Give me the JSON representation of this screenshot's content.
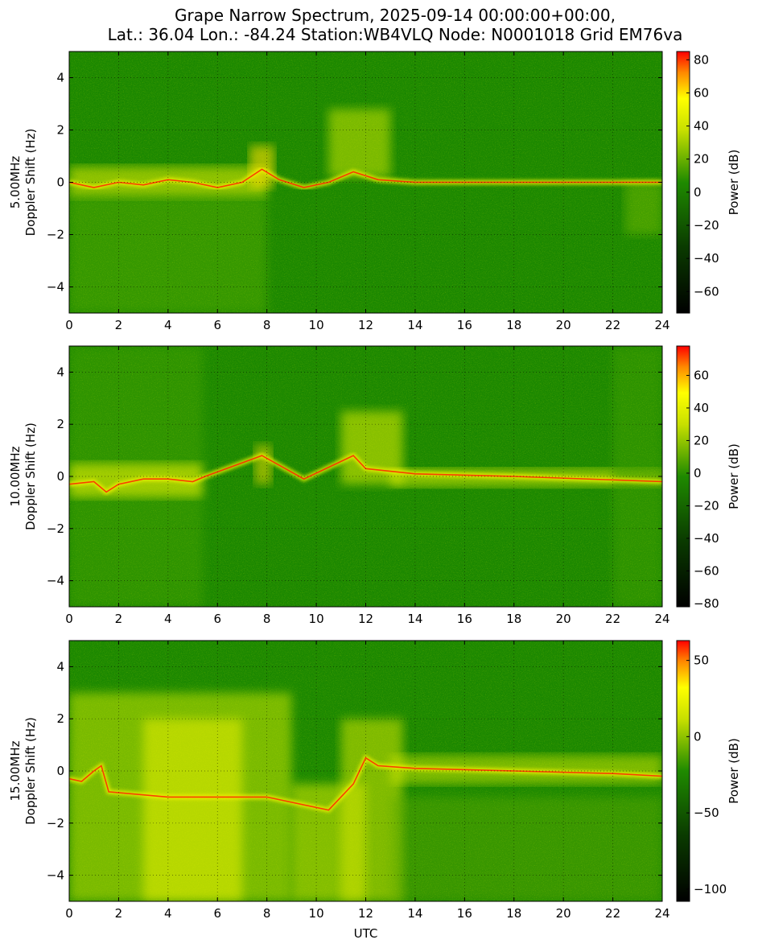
{
  "title_line1": "Grape Narrow Spectrum, 2025-09-14 00:00:00+00:00,",
  "title_line2": "Lat.: 36.04 Lon.: -84.24 Station:WB4VLQ Node: N0001018 Grid EM76va",
  "colors": {
    "background_green": "#1f8a00",
    "dark_green": "#0d4d00",
    "yellow": "#f2f200",
    "red": "#ff2200",
    "grid": "#000000"
  },
  "chart_data": [
    {
      "type": "heatmap",
      "panel": "5.00MHz",
      "ylabel_line1": "5.00MHz",
      "ylabel_line2": "Doppler Shift (Hz)",
      "xlabel": "",
      "xlim": [
        0,
        24
      ],
      "ylim": [
        -5,
        5
      ],
      "xticks": [
        0,
        2,
        4,
        6,
        8,
        10,
        12,
        14,
        16,
        18,
        20,
        22,
        24
      ],
      "yticks": [
        4,
        2,
        0,
        -2,
        -4
      ],
      "colorbar": {
        "label": "Power (dB)",
        "range": [
          -73,
          85
        ],
        "ticks": [
          80,
          60,
          40,
          20,
          0,
          -20,
          -40,
          -60
        ]
      },
      "trace": {
        "x": [
          0,
          1,
          2,
          3,
          4,
          5,
          6,
          7,
          7.8,
          8.5,
          9.5,
          10.5,
          11.5,
          12.5,
          14,
          24
        ],
        "y": [
          0,
          -0.2,
          0,
          -0.1,
          0.1,
          0,
          -0.2,
          0,
          0.5,
          0.1,
          -0.2,
          0,
          0.4,
          0.1,
          0,
          0
        ]
      }
    },
    {
      "type": "heatmap",
      "panel": "10.00MHz",
      "ylabel_line1": "10.00MHz",
      "ylabel_line2": "Doppler Shift (Hz)",
      "xlabel": "",
      "xlim": [
        0,
        24
      ],
      "ylim": [
        -5,
        5
      ],
      "xticks": [
        0,
        2,
        4,
        6,
        8,
        10,
        12,
        14,
        16,
        18,
        20,
        22,
        24
      ],
      "yticks": [
        4,
        2,
        0,
        -2,
        -4
      ],
      "colorbar": {
        "label": "Power (dB)",
        "range": [
          -82,
          78
        ],
        "ticks": [
          60,
          40,
          20,
          0,
          -20,
          -40,
          -60,
          -80
        ]
      },
      "trace": {
        "x": [
          0,
          1,
          1.5,
          2,
          3,
          4,
          5,
          5.5,
          7.8,
          9.5,
          11.5,
          12,
          14,
          18,
          24
        ],
        "y": [
          -0.3,
          -0.2,
          -0.6,
          -0.3,
          -0.1,
          -0.1,
          -0.2,
          0,
          0.8,
          -0.1,
          0.8,
          0.3,
          0.1,
          0,
          -0.2
        ]
      }
    },
    {
      "type": "heatmap",
      "panel": "15.00MHz",
      "ylabel_line1": "15.00MHz",
      "ylabel_line2": "Doppler Shift (Hz)",
      "xlabel": "UTC",
      "xlim": [
        0,
        24
      ],
      "ylim": [
        -5,
        5
      ],
      "xticks": [
        0,
        2,
        4,
        6,
        8,
        10,
        12,
        14,
        16,
        18,
        20,
        22,
        24
      ],
      "yticks": [
        4,
        2,
        0,
        -2,
        -4
      ],
      "colorbar": {
        "label": "Power (dB)",
        "range": [
          -108,
          63
        ],
        "ticks": [
          50,
          0,
          -50,
          -100
        ]
      },
      "trace": {
        "x": [
          0,
          0.5,
          1,
          1.3,
          1.6,
          4,
          8,
          10.5,
          11.5,
          12,
          12.5,
          14,
          18,
          22,
          24
        ],
        "y": [
          -0.3,
          -0.4,
          0,
          0.2,
          -0.8,
          -1,
          -1,
          -1.5,
          -0.5,
          0.5,
          0.2,
          0.1,
          0,
          -0.1,
          -0.2
        ]
      }
    }
  ]
}
